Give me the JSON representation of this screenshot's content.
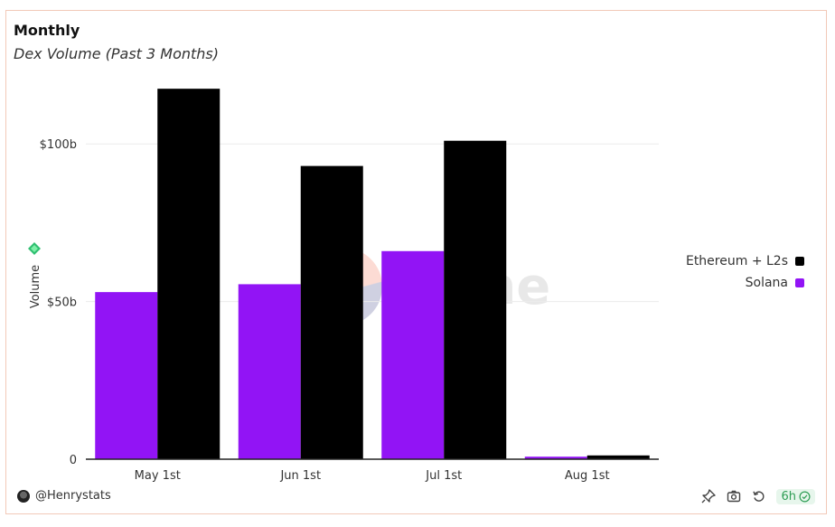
{
  "title": "Monthly",
  "subtitle": "Dex Volume (Past 3 Months)",
  "watermark": "Dune",
  "author": "@Henrystats",
  "freshness": "6h",
  "colors": {
    "ethereum": "#000000",
    "solana": "#9214f5",
    "grid": "#ececec",
    "accent": "#2f9e55"
  },
  "icons": {
    "pin": "pin-icon",
    "camera": "camera-icon",
    "refresh": "refresh-icon",
    "check": "check-circle-icon",
    "yaxis": "chain-logo-icon"
  },
  "chart_data": {
    "type": "bar",
    "title": "Monthly",
    "subtitle": "Dex Volume (Past 3 Months)",
    "xlabel": "",
    "ylabel": "Volume",
    "categories": [
      "May 1st",
      "Jun 1st",
      "Jul 1st",
      "Aug 1st"
    ],
    "series": [
      {
        "name": "Solana",
        "color": "#9214f5",
        "values": [
          53,
          55.5,
          66,
          0.8
        ]
      },
      {
        "name": "Ethereum + L2s",
        "color": "#000000",
        "values": [
          117.5,
          93,
          101,
          1.2
        ]
      }
    ],
    "yticks": [
      {
        "value": 0,
        "label": "0"
      },
      {
        "value": 50,
        "label": "$50b"
      },
      {
        "value": 100,
        "label": "$100b"
      }
    ],
    "ylim": [
      0,
      125
    ],
    "grid": true,
    "legend": {
      "position": "right",
      "entries": [
        "Ethereum + L2s",
        "Solana"
      ]
    }
  }
}
